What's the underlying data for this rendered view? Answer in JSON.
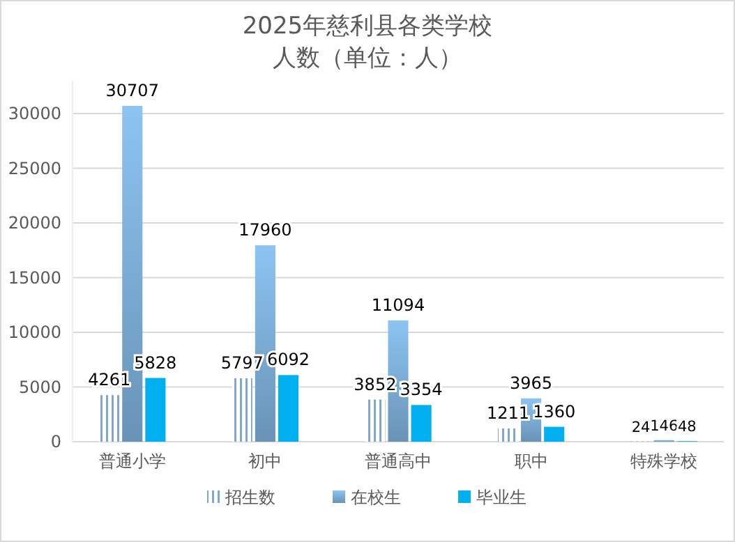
{
  "chart_data": {
    "type": "bar",
    "title": "2025年慈利县各类学校",
    "subtitle": "人数（单位：人）",
    "categories": [
      "普通小学",
      "初中",
      "普通高中",
      "职中",
      "特殊学校"
    ],
    "series": [
      {
        "name": "招生数",
        "color": "#7fa6cc",
        "values": [
          4261,
          5797,
          3852,
          1211,
          24
        ]
      },
      {
        "name": "在校生",
        "color": "#8cc4f2",
        "values": [
          30707,
          17960,
          11094,
          3965,
          146
        ]
      },
      {
        "name": "毕业生",
        "color": "#00b0f0",
        "values": [
          5828,
          6092,
          3354,
          1360,
          48
        ]
      }
    ],
    "ylim": [
      0,
      33000
    ],
    "yticks": [
      0,
      5000,
      10000,
      15000,
      20000,
      25000,
      30000
    ],
    "grid": "y",
    "legend": "bottom",
    "data_labels": true
  }
}
